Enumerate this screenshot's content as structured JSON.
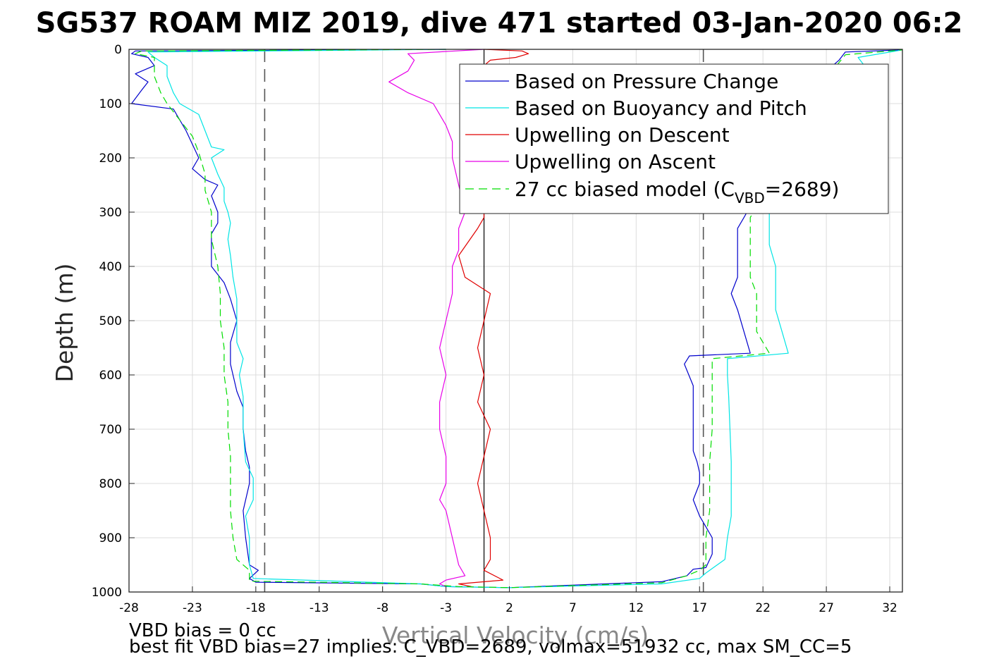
{
  "chart_data": {
    "type": "line",
    "title": "SG537 ROAM MIZ 2019, dive 471 started 03-Jan-2020 06:2",
    "xlabel": "Vertical Velocity (cm/s)",
    "ylabel": "Depth (m)",
    "xlim": [
      -28,
      33
    ],
    "ylim": [
      0,
      1000
    ],
    "y_reversed": true,
    "grid": true,
    "x_ticks": [
      -28,
      -23,
      -18,
      -13,
      -8,
      -3,
      2,
      7,
      12,
      17,
      22,
      27,
      32
    ],
    "x_tick_labels": [
      "-28",
      "-23",
      "-18",
      "-13",
      "-8",
      "-3",
      "2",
      "7",
      "12",
      "17",
      "22",
      "27",
      "32"
    ],
    "y_ticks": [
      0,
      100,
      200,
      300,
      400,
      500,
      600,
      700,
      800,
      900,
      1000
    ],
    "y_tick_labels": [
      "0",
      "100",
      "200",
      "300",
      "400",
      "500",
      "600",
      "700",
      "800",
      "900",
      "1000"
    ],
    "reference_lines": [
      {
        "orientation": "vertical",
        "x": -17.3,
        "style": "dashed",
        "color": "#555555"
      },
      {
        "orientation": "vertical",
        "x": 17.3,
        "style": "dashed",
        "color": "#555555"
      },
      {
        "orientation": "vertical",
        "x": 0,
        "style": "solid",
        "color": "#000000"
      }
    ],
    "legend": {
      "placement": "top-right",
      "entries": [
        {
          "label": "Based on Pressure Change",
          "color": "#0000cc",
          "style": "solid"
        },
        {
          "label": "Based on Buoyancy and Pitch",
          "color": "#00e5e5",
          "style": "solid"
        },
        {
          "label": "Upwelling on Descent",
          "color": "#e00000",
          "style": "solid"
        },
        {
          "label": "Upwelling on Ascent",
          "color": "#e800e8",
          "style": "solid"
        },
        {
          "label_main": "27 cc biased model (C",
          "label_sub": "VBD",
          "label_end": "=2689)",
          "color": "#00dd00",
          "style": "dashed"
        }
      ]
    },
    "series": [
      {
        "name": "Based on Pressure Change",
        "color": "#0000cc",
        "points": [
          [
            -3,
            0
          ],
          [
            -27.5,
            3
          ],
          [
            -27.8,
            8
          ],
          [
            -26.5,
            15
          ],
          [
            -26,
            30
          ],
          [
            -27.5,
            45
          ],
          [
            -26.5,
            60
          ],
          [
            -27,
            75
          ],
          [
            -27.8,
            100
          ],
          [
            -24.5,
            110
          ],
          [
            -24,
            130
          ],
          [
            -23.5,
            150
          ],
          [
            -23,
            175
          ],
          [
            -22.5,
            200
          ],
          [
            -23,
            220
          ],
          [
            -22,
            240
          ],
          [
            -21,
            250
          ],
          [
            -21.5,
            270
          ],
          [
            -21,
            300
          ],
          [
            -21,
            320
          ],
          [
            -21.5,
            340
          ],
          [
            -21.5,
            380
          ],
          [
            -21.5,
            400
          ],
          [
            -20.5,
            430
          ],
          [
            -20,
            460
          ],
          [
            -19.5,
            500
          ],
          [
            -20,
            540
          ],
          [
            -20,
            580
          ],
          [
            -19.5,
            630
          ],
          [
            -19,
            660
          ],
          [
            -19,
            700
          ],
          [
            -18.8,
            740
          ],
          [
            -18.5,
            770
          ],
          [
            -18.5,
            800
          ],
          [
            -19,
            850
          ],
          [
            -18.8,
            900
          ],
          [
            -18.5,
            950
          ],
          [
            -17.8,
            960
          ],
          [
            -18.5,
            975
          ],
          [
            -18,
            982
          ],
          [
            -5,
            985
          ],
          [
            -3,
            990
          ],
          [
            2,
            992
          ],
          [
            14,
            981
          ],
          [
            16,
            970
          ],
          [
            16.5,
            958
          ],
          [
            17.5,
            955
          ],
          [
            18,
            930
          ],
          [
            18,
            900
          ],
          [
            17.5,
            880
          ],
          [
            17,
            860
          ],
          [
            16.5,
            830
          ],
          [
            17,
            800
          ],
          [
            17,
            780
          ],
          [
            16.8,
            760
          ],
          [
            16.5,
            740
          ],
          [
            16.5,
            700
          ],
          [
            16.5,
            660
          ],
          [
            16.5,
            620
          ],
          [
            15.8,
            580
          ],
          [
            16.2,
            565
          ],
          [
            21,
            560
          ],
          [
            20.5,
            520
          ],
          [
            20,
            480
          ],
          [
            19.5,
            450
          ],
          [
            20,
            420
          ],
          [
            20,
            400
          ],
          [
            20,
            360
          ],
          [
            20,
            330
          ],
          [
            20.5,
            310
          ],
          [
            27,
            40
          ],
          [
            28,
            20
          ],
          [
            28.5,
            5
          ],
          [
            33,
            1
          ]
        ]
      },
      {
        "name": "Based on Buoyancy and Pitch",
        "color": "#00e5e5",
        "points": [
          [
            -3,
            0
          ],
          [
            -26.5,
            5
          ],
          [
            -26,
            15
          ],
          [
            -25,
            30
          ],
          [
            -25,
            50
          ],
          [
            -24.5,
            80
          ],
          [
            -24,
            100
          ],
          [
            -22.5,
            120
          ],
          [
            -22,
            150
          ],
          [
            -21.5,
            180
          ],
          [
            -20.5,
            185
          ],
          [
            -21.5,
            200
          ],
          [
            -21,
            230
          ],
          [
            -20.5,
            255
          ],
          [
            -20.5,
            280
          ],
          [
            -20.2,
            300
          ],
          [
            -20,
            320
          ],
          [
            -20.2,
            350
          ],
          [
            -20,
            380
          ],
          [
            -19.8,
            420
          ],
          [
            -19.5,
            460
          ],
          [
            -19.5,
            500
          ],
          [
            -19.5,
            540
          ],
          [
            -19,
            570
          ],
          [
            -19.3,
            600
          ],
          [
            -19,
            640
          ],
          [
            -19,
            700
          ],
          [
            -18.8,
            760
          ],
          [
            -18.2,
            790
          ],
          [
            -18.2,
            830
          ],
          [
            -18.8,
            860
          ],
          [
            -18.5,
            900
          ],
          [
            -18.5,
            950
          ],
          [
            -18.2,
            975
          ],
          [
            -5,
            985
          ],
          [
            -3,
            990
          ],
          [
            2,
            992
          ],
          [
            14,
            985
          ],
          [
            17,
            975
          ],
          [
            17.5,
            965
          ],
          [
            19,
            940
          ],
          [
            19.2,
            900
          ],
          [
            19.5,
            860
          ],
          [
            19.5,
            800
          ],
          [
            19.5,
            760
          ],
          [
            19.4,
            700
          ],
          [
            19.3,
            640
          ],
          [
            19.2,
            600
          ],
          [
            19.2,
            570
          ],
          [
            24,
            560
          ],
          [
            23.5,
            520
          ],
          [
            23,
            480
          ],
          [
            23,
            440
          ],
          [
            23,
            400
          ],
          [
            22.5,
            360
          ],
          [
            22.5,
            320
          ],
          [
            22.5,
            300
          ],
          [
            29.5,
            50
          ],
          [
            30,
            30
          ],
          [
            29.5,
            15
          ],
          [
            33,
            1
          ]
        ]
      },
      {
        "name": "Upwelling on Descent",
        "color": "#e00000",
        "points": [
          [
            0,
            0
          ],
          [
            3,
            3
          ],
          [
            3.5,
            8
          ],
          [
            2.5,
            15
          ],
          [
            0.5,
            20
          ],
          [
            0,
            30
          ],
          [
            -0.5,
            50
          ],
          [
            0,
            80
          ],
          [
            0.5,
            100
          ],
          [
            -0.5,
            140
          ],
          [
            0,
            170
          ],
          [
            -1,
            200
          ],
          [
            -0.5,
            250
          ],
          [
            0,
            300
          ],
          [
            0,
            310
          ],
          [
            -0.5,
            330
          ],
          [
            -2,
            380
          ],
          [
            -1.5,
            420
          ],
          [
            0.5,
            450
          ],
          [
            0,
            500
          ],
          [
            -0.5,
            550
          ],
          [
            0,
            600
          ],
          [
            -0.5,
            650
          ],
          [
            0.5,
            700
          ],
          [
            0,
            750
          ],
          [
            -0.5,
            800
          ],
          [
            0,
            850
          ],
          [
            0.5,
            900
          ],
          [
            0.5,
            940
          ],
          [
            0,
            960
          ],
          [
            1.5,
            978
          ],
          [
            -2,
            985
          ],
          [
            -1,
            990
          ]
        ]
      },
      {
        "name": "Upwelling on Ascent",
        "color": "#e800e8",
        "points": [
          [
            0,
            0
          ],
          [
            -6,
            8
          ],
          [
            -5.5,
            20
          ],
          [
            -6,
            40
          ],
          [
            -7.5,
            60
          ],
          [
            -6,
            80
          ],
          [
            -4,
            100
          ],
          [
            -3.5,
            120
          ],
          [
            -3,
            140
          ],
          [
            -2.5,
            170
          ],
          [
            -2.5,
            200
          ],
          [
            -2,
            250
          ],
          [
            -1.5,
            300
          ],
          [
            -2,
            330
          ],
          [
            -2,
            370
          ],
          [
            -2.5,
            400
          ],
          [
            -2.5,
            450
          ],
          [
            -3,
            500
          ],
          [
            -3.5,
            550
          ],
          [
            -3,
            600
          ],
          [
            -3.5,
            650
          ],
          [
            -3.5,
            700
          ],
          [
            -3,
            750
          ],
          [
            -3,
            800
          ],
          [
            -3.5,
            830
          ],
          [
            -3,
            850
          ],
          [
            -2.5,
            900
          ],
          [
            -2,
            950
          ],
          [
            -1.5,
            970
          ],
          [
            -3,
            978
          ],
          [
            -3.5,
            985
          ],
          [
            -3,
            990
          ]
        ]
      },
      {
        "name": "27 cc biased model",
        "color": "#00dd00",
        "dashed": true,
        "points": [
          [
            -3,
            0
          ],
          [
            -27,
            3
          ],
          [
            -27.5,
            8
          ],
          [
            -26,
            15
          ],
          [
            -26,
            30
          ],
          [
            -26,
            50
          ],
          [
            -25.5,
            80
          ],
          [
            -25,
            100
          ],
          [
            -24,
            130
          ],
          [
            -23,
            160
          ],
          [
            -22.5,
            190
          ],
          [
            -22,
            230
          ],
          [
            -22,
            260
          ],
          [
            -21.5,
            300
          ],
          [
            -21.5,
            350
          ],
          [
            -21,
            400
          ],
          [
            -20.8,
            450
          ],
          [
            -20.8,
            500
          ],
          [
            -20.5,
            550
          ],
          [
            -20.5,
            600
          ],
          [
            -20.2,
            650
          ],
          [
            -20.2,
            700
          ],
          [
            -20,
            750
          ],
          [
            -20,
            800
          ],
          [
            -20,
            850
          ],
          [
            -19.8,
            900
          ],
          [
            -19.5,
            940
          ],
          [
            -18.5,
            960
          ],
          [
            -18.5,
            980
          ],
          [
            -5,
            985
          ],
          [
            -2,
            990
          ],
          [
            2,
            992
          ],
          [
            14,
            983
          ],
          [
            16,
            970
          ],
          [
            17,
            960
          ],
          [
            17.5,
            950
          ],
          [
            17.5,
            900
          ],
          [
            17.8,
            850
          ],
          [
            17.8,
            800
          ],
          [
            17.8,
            760
          ],
          [
            18,
            700
          ],
          [
            18,
            650
          ],
          [
            18,
            600
          ],
          [
            18,
            570
          ],
          [
            22.5,
            560
          ],
          [
            21.5,
            520
          ],
          [
            21.5,
            480
          ],
          [
            21.5,
            450
          ],
          [
            21,
            420
          ],
          [
            21,
            380
          ],
          [
            21,
            340
          ],
          [
            21,
            310
          ],
          [
            27,
            50
          ],
          [
            27.8,
            30
          ],
          [
            28.5,
            10
          ],
          [
            33,
            1
          ]
        ]
      }
    ]
  },
  "notes": {
    "line1": "VBD bias = 0 cc",
    "line2": "best fit VBD bias=27 implies: C_VBD=2689, volmax=51932 cc, max SM_CC=5"
  }
}
